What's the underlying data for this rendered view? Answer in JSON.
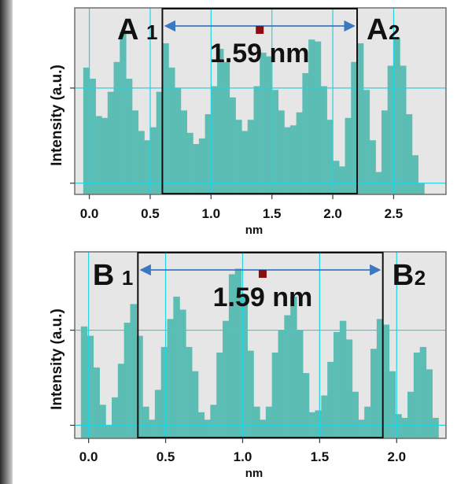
{
  "colors": {
    "plot_bg": "#e6e6e6",
    "bars": "#5bbdb4",
    "grid": "#22d4e3",
    "arrow": "#3b78c0",
    "marker": "#8b0d10",
    "box": "#111111"
  },
  "chart_data": [
    {
      "type": "bar",
      "id": "A",
      "xlabel": "nm",
      "ylabel": "Intensity (a.u.)",
      "xlim": [
        -0.12,
        2.93
      ],
      "ylim": [
        0,
        1
      ],
      "xticks": [
        0.0,
        0.5,
        1.0,
        1.5,
        2.0,
        2.5
      ],
      "xtick_labels": [
        "0.0",
        "0.5",
        "1.0",
        "1.5",
        "2.0",
        "2.5"
      ],
      "yticks": [
        0.06,
        0.57
      ],
      "grid": true,
      "labels": {
        "left_main": "A",
        "left_sub": "1",
        "right_main": "A",
        "right_sub": "2"
      },
      "annotation": {
        "text": "1.59 nm",
        "x": 1.4,
        "arrow_from": 0.6,
        "arrow_to": 2.2
      },
      "box": {
        "x0": 0.6,
        "x1": 2.2
      },
      "bin_start": -0.05,
      "bin_width": 0.05,
      "values": [
        0.68,
        0.62,
        0.42,
        0.41,
        0.55,
        0.71,
        0.87,
        0.62,
        0.45,
        0.34,
        0.29,
        0.36,
        0.55,
        0.81,
        0.68,
        0.57,
        0.45,
        0.33,
        0.27,
        0.3,
        0.43,
        0.58,
        0.78,
        0.71,
        0.52,
        0.4,
        0.34,
        0.4,
        0.58,
        0.76,
        0.74,
        0.56,
        0.45,
        0.36,
        0.37,
        0.44,
        0.65,
        0.83,
        0.82,
        0.58,
        0.4,
        0.18,
        0.15,
        0.41,
        0.71,
        0.81,
        0.56,
        0.29,
        0.12,
        0.45,
        0.69,
        0.84,
        0.69,
        0.43,
        0.21,
        0.06
      ]
    },
    {
      "type": "bar",
      "id": "B",
      "xlabel": "nm",
      "ylabel": "Intensity (a.u.)",
      "xlim": [
        -0.09,
        2.32
      ],
      "ylim": [
        0,
        1
      ],
      "xticks": [
        0.0,
        0.5,
        1.0,
        1.5,
        2.0
      ],
      "xtick_labels": [
        "0.0",
        "0.5",
        "1.0",
        "1.5",
        "2.0"
      ],
      "yticks": [
        0.07,
        0.58
      ],
      "grid": true,
      "labels": {
        "left_main": "B",
        "left_sub": "1",
        "right_main": "B",
        "right_sub": "2"
      },
      "annotation": {
        "text": "1.59 nm",
        "x": 1.13,
        "arrow_from": 0.32,
        "arrow_to": 1.91
      },
      "box": {
        "x0": 0.32,
        "x1": 1.91
      },
      "bin_start": -0.05,
      "bin_width": 0.04,
      "values": [
        0.6,
        0.55,
        0.38,
        0.18,
        0.07,
        0.22,
        0.4,
        0.62,
        0.72,
        0.55,
        0.17,
        0.1,
        0.26,
        0.49,
        0.64,
        0.76,
        0.69,
        0.49,
        0.36,
        0.14,
        0.1,
        0.18,
        0.46,
        0.63,
        0.88,
        0.91,
        0.77,
        0.47,
        0.17,
        0.1,
        0.17,
        0.46,
        0.58,
        0.66,
        0.76,
        0.58,
        0.35,
        0.14,
        0.15,
        0.23,
        0.41,
        0.57,
        0.63,
        0.53,
        0.25,
        0.1,
        0.17,
        0.48,
        0.64,
        0.61,
        0.36,
        0.13,
        0.11,
        0.25,
        0.46,
        0.49,
        0.37,
        0.11
      ]
    }
  ]
}
